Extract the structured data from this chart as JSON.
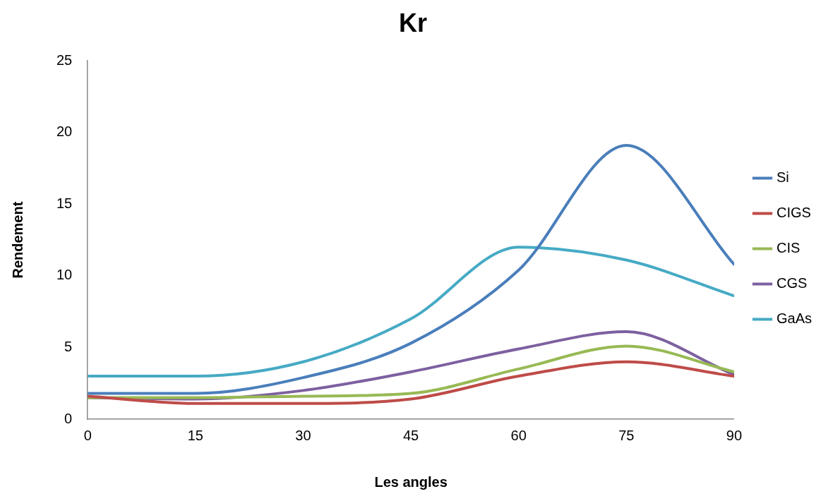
{
  "chart_data": {
    "type": "line",
    "title": "Kr",
    "xlabel": "Les angles",
    "ylabel": "Rendement",
    "x": [
      0,
      15,
      30,
      45,
      60,
      75,
      90
    ],
    "xlim": [
      0,
      90
    ],
    "xticks": [
      0,
      15,
      30,
      45,
      60,
      75,
      90
    ],
    "ylim": [
      0,
      25
    ],
    "yticks": [
      0,
      5,
      10,
      15,
      20,
      25
    ],
    "grid": false,
    "legend": "right",
    "marker": "none",
    "line_style": "solid",
    "series": [
      {
        "name": "Si",
        "color": "#4a7ebb",
        "values": [
          1.8,
          1.8,
          2.9,
          5.3,
          10.4,
          19.1,
          10.8
        ]
      },
      {
        "name": "CIGS",
        "color": "#be4b48",
        "values": [
          1.6,
          1.1,
          1.1,
          1.4,
          3.0,
          4.0,
          3.0
        ]
      },
      {
        "name": "CIS",
        "color": "#98b954",
        "values": [
          1.5,
          1.5,
          1.6,
          1.8,
          3.5,
          5.1,
          3.3
        ]
      },
      {
        "name": "CGS",
        "color": "#7d60a0",
        "values": [
          1.5,
          1.4,
          2.0,
          3.3,
          4.9,
          6.1,
          3.1
        ]
      },
      {
        "name": "GaAs",
        "color": "#46aac5",
        "values": [
          3.0,
          3.0,
          4.0,
          7.0,
          12.0,
          11.1,
          8.6
        ]
      }
    ]
  }
}
